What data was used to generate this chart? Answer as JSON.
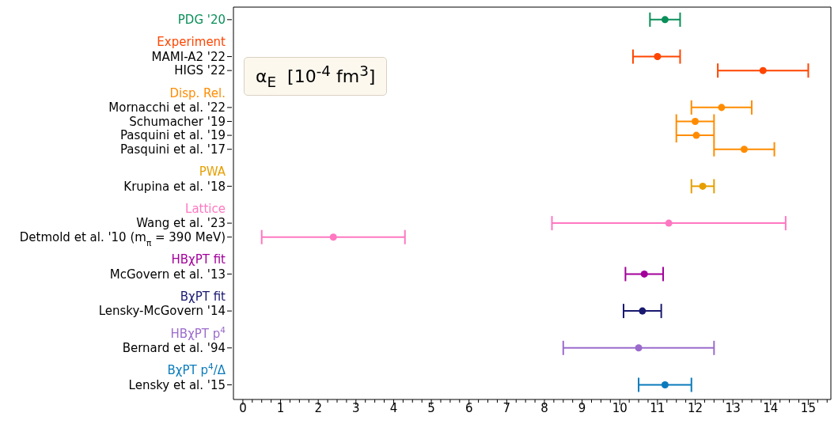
{
  "chart_data": {
    "type": "scatter",
    "orientation": "horizontal",
    "marker": "circle",
    "categories": [
      null,
      "MAMI-A2 '22",
      "HIGS '22",
      "Mornacchi et al. '22",
      "Schumacher '19",
      "Pasquini et al. '19",
      "Pasquini et al. '17",
      "Krupina et al. '18",
      "Wang et al. '23",
      "Detmold et al. '10 (m$_{π}$ = 390 MeV)",
      "McGovern et al. '13",
      "Lensky-McGovern '14",
      "Bernard et al. '94",
      "Lensky et al. '15"
    ],
    "series": [
      {
        "name": "PDG '20",
        "color": "#0a8f5a",
        "values": [
          11.2,
          null,
          null,
          null,
          null,
          null,
          null,
          null,
          null,
          null,
          null,
          null,
          null,
          null
        ],
        "errors": [
          [
            10.8,
            11.6
          ],
          null,
          null,
          null,
          null,
          null,
          null,
          null,
          null,
          null,
          null,
          null,
          null,
          null
        ]
      },
      {
        "name": "Experiment",
        "color": "#ff4500",
        "values": [
          null,
          11.0,
          13.8,
          null,
          null,
          null,
          null,
          null,
          null,
          null,
          null,
          null,
          null,
          null
        ],
        "errors": [
          null,
          [
            10.35,
            11.6
          ],
          [
            12.6,
            15.0
          ],
          null,
          null,
          null,
          null,
          null,
          null,
          null,
          null,
          null,
          null,
          null
        ]
      },
      {
        "name": "Disp. Rel.",
        "color": "#ff8c00",
        "values": [
          null,
          null,
          null,
          12.7,
          12.0,
          12.03,
          13.3,
          null,
          null,
          null,
          null,
          null,
          null,
          null
        ],
        "errors": [
          null,
          null,
          null,
          [
            11.9,
            13.5
          ],
          [
            11.5,
            12.5
          ],
          [
            11.5,
            12.5
          ],
          [
            12.5,
            14.1
          ],
          null,
          null,
          null,
          null,
          null,
          null,
          null
        ]
      },
      {
        "name": "PWA",
        "color": "#e69f00",
        "values": [
          null,
          null,
          null,
          null,
          null,
          null,
          null,
          12.2,
          null,
          null,
          null,
          null,
          null,
          null
        ],
        "errors": [
          null,
          null,
          null,
          null,
          null,
          null,
          null,
          [
            11.9,
            12.5
          ],
          null,
          null,
          null,
          null,
          null,
          null
        ]
      },
      {
        "name": "Lattice",
        "color": "#ff77c0",
        "values": [
          null,
          null,
          null,
          null,
          null,
          null,
          null,
          null,
          11.3,
          2.4,
          null,
          null,
          null,
          null
        ],
        "errors": [
          null,
          null,
          null,
          null,
          null,
          null,
          null,
          null,
          [
            8.2,
            14.4
          ],
          [
            0.5,
            4.3
          ],
          null,
          null,
          null,
          null
        ]
      },
      {
        "name": "HBχPT fit",
        "color": "#a3009a",
        "values": [
          null,
          null,
          null,
          null,
          null,
          null,
          null,
          null,
          null,
          null,
          10.65,
          null,
          null,
          null
        ],
        "errors": [
          null,
          null,
          null,
          null,
          null,
          null,
          null,
          null,
          null,
          null,
          [
            10.15,
            11.15
          ],
          null,
          null,
          null
        ]
      },
      {
        "name": "BχPT fit",
        "color": "#191970",
        "values": [
          null,
          null,
          null,
          null,
          null,
          null,
          null,
          null,
          null,
          null,
          null,
          10.6,
          null,
          null
        ],
        "errors": [
          null,
          null,
          null,
          null,
          null,
          null,
          null,
          null,
          null,
          null,
          null,
          [
            10.1,
            11.1
          ],
          null,
          null
        ]
      },
      {
        "name": "HBχPT p$^{4}$",
        "color": "#9b6bcc",
        "values": [
          null,
          null,
          null,
          null,
          null,
          null,
          null,
          null,
          null,
          null,
          null,
          null,
          10.5,
          null
        ],
        "errors": [
          null,
          null,
          null,
          null,
          null,
          null,
          null,
          null,
          null,
          null,
          null,
          null,
          [
            8.5,
            12.5
          ],
          null
        ]
      },
      {
        "name": "BχPT p$^{4}$/Δ",
        "color": "#0a7bbb",
        "values": [
          null,
          null,
          null,
          null,
          null,
          null,
          null,
          null,
          null,
          null,
          null,
          null,
          null,
          11.2
        ],
        "errors": [
          null,
          null,
          null,
          null,
          null,
          null,
          null,
          null,
          null,
          null,
          null,
          null,
          null,
          [
            10.5,
            11.9
          ]
        ]
      }
    ],
    "xlim": [
      -0.25,
      15.6
    ],
    "xticks": [
      0,
      {
        "value": 0.25,
        "label": null
      },
      {
        "value": 0.5,
        "label": null
      },
      {
        "value": 0.75,
        "label": null
      },
      1,
      {
        "value": 1.25,
        "label": null
      },
      {
        "value": 1.5,
        "label": null
      },
      {
        "value": 1.75,
        "label": null
      },
      2,
      {
        "value": 2.25,
        "label": null
      },
      {
        "value": 2.5,
        "label": null
      },
      {
        "value": 2.75,
        "label": null
      },
      3,
      {
        "value": 3.25,
        "label": null
      },
      {
        "value": 3.5,
        "label": null
      },
      {
        "value": 3.75,
        "label": null
      },
      4,
      {
        "value": 4.25,
        "label": null
      },
      {
        "value": 4.5,
        "label": null
      },
      {
        "value": 4.75,
        "label": null
      },
      5,
      {
        "value": 5.25,
        "label": null
      },
      {
        "value": 5.5,
        "label": null
      },
      {
        "value": 5.75,
        "label": null
      },
      6,
      {
        "value": 6.25,
        "label": null
      },
      {
        "value": 6.5,
        "label": null
      },
      {
        "value": 6.75,
        "label": null
      },
      7,
      {
        "value": 7.25,
        "label": null
      },
      {
        "value": 7.5,
        "label": null
      },
      {
        "value": 7.75,
        "label": null
      },
      8,
      {
        "value": 8.25,
        "label": null
      },
      {
        "value": 8.5,
        "label": null
      },
      {
        "value": 8.75,
        "label": null
      },
      9,
      {
        "value": 9.25,
        "label": null
      },
      {
        "value": 9.5,
        "label": null
      },
      {
        "value": 9.75,
        "label": null
      },
      10,
      {
        "value": 10.25,
        "label": null
      },
      {
        "value": 10.5,
        "label": null
      },
      {
        "value": 10.75,
        "label": null
      },
      11,
      {
        "value": 11.25,
        "label": null
      },
      {
        "value": 11.5,
        "label": null
      },
      {
        "value": 11.75,
        "label": null
      },
      12,
      {
        "value": 12.25,
        "label": null
      },
      {
        "value": 12.5,
        "label": null
      },
      {
        "value": 12.75,
        "label": null
      },
      13,
      {
        "value": 13.25,
        "label": null
      },
      {
        "value": 13.5,
        "label": null
      },
      {
        "value": 13.75,
        "label": null
      },
      14,
      {
        "value": 14.25,
        "label": null
      },
      {
        "value": 14.5,
        "label": null
      },
      {
        "value": 14.75,
        "label": null
      },
      15,
      {
        "value": 15.25,
        "label": null
      },
      {
        "value": 15.5,
        "label": null
      }
    ],
    "annotations": [
      "α$_{E}$  [10$^{-4}$ fm$^{3}$]"
    ]
  }
}
